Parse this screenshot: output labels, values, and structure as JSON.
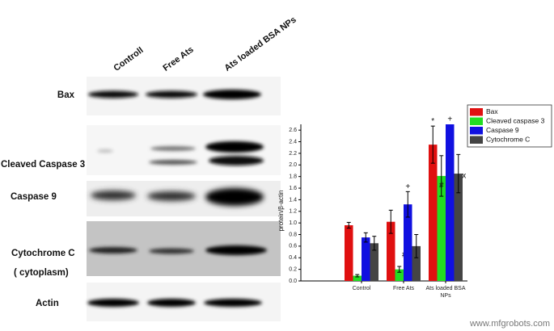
{
  "blot": {
    "lanes": [
      "Controll",
      "Free Ats",
      "Ats loaded BSA NPs"
    ],
    "rows": [
      {
        "label": "Bax"
      },
      {
        "label": "Cleaved Caspase 3"
      },
      {
        "label": "Caspase 9"
      },
      {
        "label": "Cytochrome C",
        "note": "( cytoplasm)"
      },
      {
        "label": "Actin"
      }
    ]
  },
  "chart_data": {
    "type": "bar",
    "y_label": "protein/β-actin",
    "categories": [
      "Control",
      "Free Ats",
      "Ats loaded BSA NPs"
    ],
    "series": [
      {
        "name": "Bax",
        "color": "#e01010",
        "values": [
          0.96,
          1.02,
          2.35
        ],
        "errors": [
          0.05,
          0.2,
          0.32
        ],
        "marks": [
          null,
          null,
          "*"
        ]
      },
      {
        "name": "Cleaved caspase 3",
        "color": "#22dd22",
        "values": [
          0.09,
          0.2,
          1.81
        ],
        "errors": [
          0.02,
          0.05,
          0.35
        ],
        "marks": [
          null,
          "#",
          "#"
        ]
      },
      {
        "name": "Caspase 9",
        "color": "#1010e0",
        "values": [
          0.75,
          1.32,
          2.7
        ],
        "errors": [
          0.08,
          0.22,
          null
        ],
        "marks": [
          null,
          "+",
          "+"
        ]
      },
      {
        "name": "Cytochrome C",
        "color": "#444444",
        "values": [
          0.65,
          0.6,
          1.85
        ],
        "errors": [
          0.12,
          0.2,
          0.33
        ],
        "marks": [
          null,
          null,
          "x"
        ]
      }
    ],
    "ylim": [
      0,
      2.7
    ],
    "yticks": [
      {
        "value": 0,
        "label": "0.0"
      },
      {
        "value": 0.2,
        "label": "0.2"
      },
      {
        "value": 0.4,
        "label": "0.4"
      },
      {
        "value": 0.6,
        "label": "0.6"
      },
      {
        "value": 0.8,
        "label": "0.8"
      },
      {
        "value": 1,
        "label": "1.0"
      },
      {
        "value": 1.2,
        "label": "1.2"
      },
      {
        "value": 1.4,
        "label": "1.4"
      },
      {
        "value": 1.6,
        "label": "1.6"
      },
      {
        "value": 1.8,
        "label": "1.8"
      },
      {
        "value": 2,
        "label": "2.0"
      },
      {
        "value": 2.2,
        "label": "2.2"
      },
      {
        "value": 2.4,
        "label": "2.4"
      },
      {
        "value": 2.6,
        "label": "2.6"
      }
    ],
    "legend": "top-right",
    "grid": false
  },
  "watermark": "www.mfgrobots.com"
}
